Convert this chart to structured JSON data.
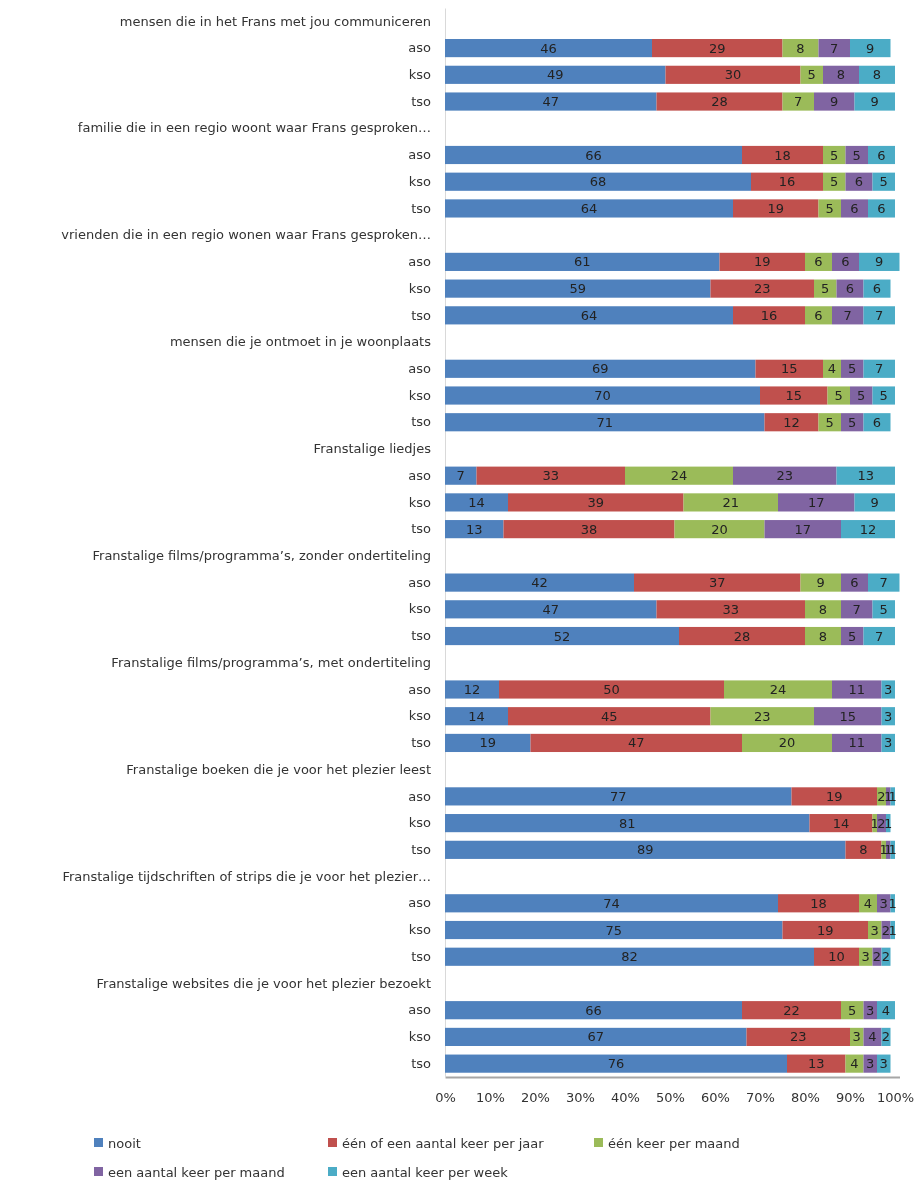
{
  "chart_data": {
    "type": "bar",
    "orientation": "horizontal",
    "stacked": true,
    "data_labels": true,
    "legend": "bottom",
    "grid": false,
    "categories": [
      "mensen die in het Frans met jou communiceren",
      "aso",
      "kso",
      "tso",
      "familie die in een regio woont waar Frans gesproken…",
      "aso",
      "kso",
      "tso",
      "vrienden die in een regio wonen waar Frans gesproken…",
      "aso",
      "kso",
      "tso",
      "mensen die je ontmoet in je woonplaats",
      "aso",
      "kso",
      "tso",
      "Franstalige liedjes",
      "aso",
      "kso",
      "tso",
      "Franstalige films/programma’s, zonder ondertiteling",
      "aso",
      "kso",
      "tso",
      "Franstalige films/programma’s, met ondertiteling",
      "aso",
      "kso",
      "tso",
      "Franstalige boeken die je voor het plezier leest",
      "aso",
      "kso",
      "tso",
      "Franstalige tijdschriften of strips die je voor het plezier…",
      "aso",
      "kso",
      "tso",
      "Franstalige websites die je voor het plezier bezoekt",
      "aso",
      "kso",
      "tso"
    ],
    "xlim": [
      0,
      101
    ],
    "xticks": [
      {
        "value": 0,
        "label": "0%"
      },
      {
        "value": 10,
        "label": "10%"
      },
      {
        "value": 20,
        "label": "20%"
      },
      {
        "value": 30,
        "label": "30%"
      },
      {
        "value": 40,
        "label": "40%"
      },
      {
        "value": 50,
        "label": "50%"
      },
      {
        "value": 60,
        "label": "60%"
      },
      {
        "value": 70,
        "label": "70%"
      },
      {
        "value": 80,
        "label": "80%"
      },
      {
        "value": 90,
        "label": "90%"
      },
      {
        "value": 100,
        "label": "100%"
      }
    ],
    "series": [
      {
        "name": "nooit",
        "color": "#4f81bd",
        "values": [
          null,
          46,
          49,
          47,
          null,
          66,
          68,
          64,
          null,
          61,
          59,
          64,
          null,
          69,
          70,
          71,
          null,
          7,
          14,
          13,
          null,
          42,
          47,
          52,
          null,
          12,
          14,
          19,
          null,
          77,
          81,
          89,
          null,
          74,
          75,
          82,
          null,
          66,
          67,
          76
        ]
      },
      {
        "name": "één of een aantal keer per jaar",
        "color": "#c0504d",
        "values": [
          null,
          29,
          30,
          28,
          null,
          18,
          16,
          19,
          null,
          19,
          23,
          16,
          null,
          15,
          15,
          12,
          null,
          33,
          39,
          38,
          null,
          37,
          33,
          28,
          null,
          50,
          45,
          47,
          null,
          19,
          14,
          8,
          null,
          18,
          19,
          10,
          null,
          22,
          23,
          13
        ]
      },
      {
        "name": "één keer per maand",
        "color": "#9bbb59",
        "values": [
          null,
          8,
          5,
          7,
          null,
          5,
          5,
          5,
          null,
          6,
          5,
          6,
          null,
          4,
          5,
          5,
          null,
          24,
          21,
          20,
          null,
          9,
          8,
          8,
          null,
          24,
          23,
          20,
          null,
          2,
          1,
          1,
          null,
          4,
          3,
          3,
          null,
          5,
          3,
          4
        ]
      },
      {
        "name": "een aantal keer per maand",
        "color": "#8064a2",
        "values": [
          null,
          7,
          8,
          9,
          null,
          5,
          6,
          6,
          null,
          6,
          6,
          7,
          null,
          5,
          5,
          5,
          null,
          23,
          17,
          17,
          null,
          6,
          7,
          5,
          null,
          11,
          15,
          11,
          null,
          1,
          2,
          1,
          null,
          3,
          2,
          2,
          null,
          3,
          4,
          3
        ]
      },
      {
        "name": "een aantal keer per week",
        "color": "#4bacc6",
        "values": [
          null,
          9,
          8,
          9,
          null,
          6,
          5,
          6,
          null,
          9,
          6,
          7,
          null,
          7,
          5,
          6,
          null,
          13,
          9,
          12,
          null,
          7,
          5,
          7,
          null,
          3,
          3,
          3,
          null,
          1,
          1,
          1,
          null,
          1,
          1,
          2,
          null,
          4,
          2,
          3
        ]
      }
    ]
  }
}
